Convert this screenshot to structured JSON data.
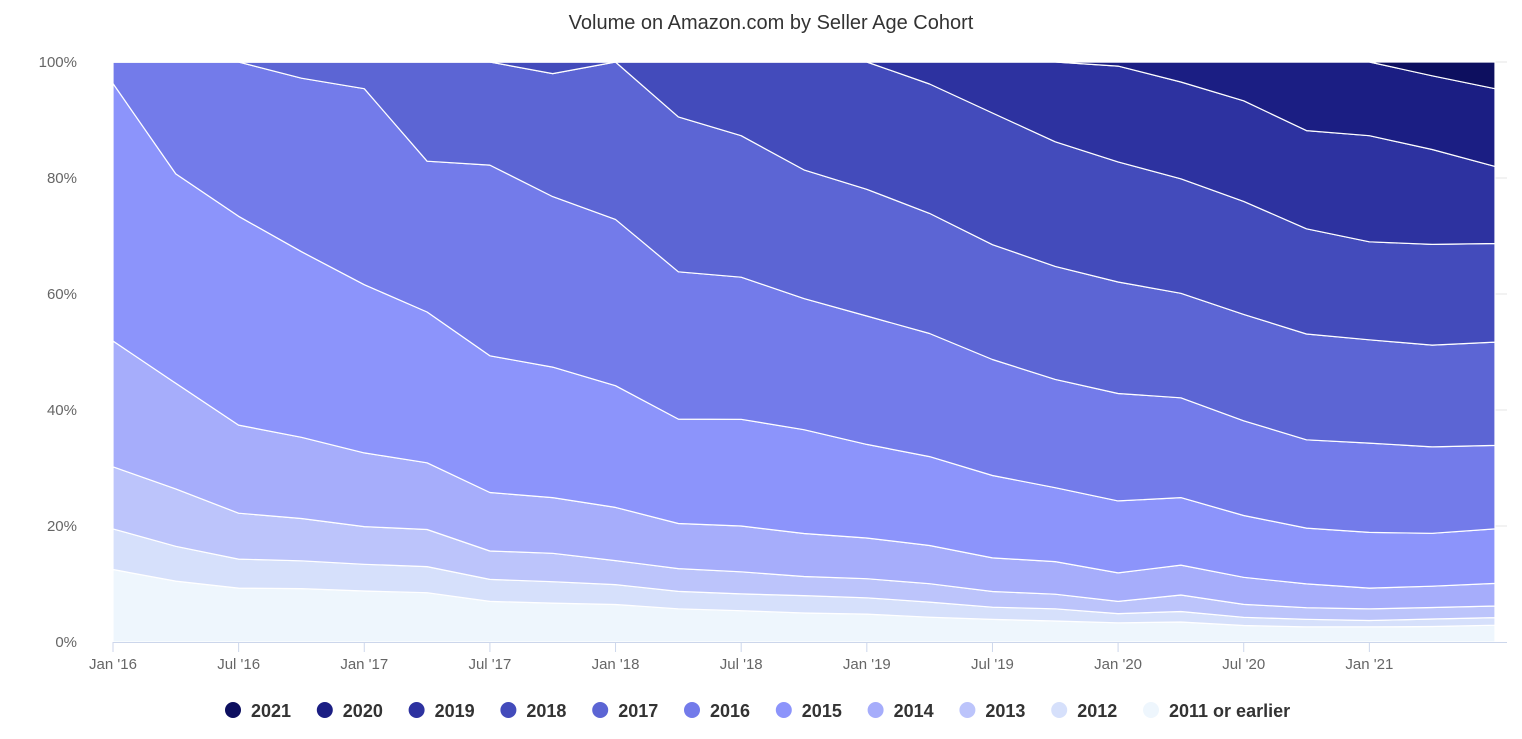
{
  "chart_data": {
    "type": "area",
    "stacking": "percent",
    "title": "Volume on Amazon.com by Seller Age Cohort",
    "xlabel": "",
    "ylabel": "",
    "ylim": [
      0,
      100
    ],
    "y_ticks": [
      "0%",
      "20%",
      "40%",
      "60%",
      "80%",
      "100%"
    ],
    "x_ticks": [
      "Jan '16",
      "Jul '16",
      "Jan '17",
      "Jul '17",
      "Jan '18",
      "Jul '18",
      "Jan '19",
      "Jul '19",
      "Jan '20",
      "Jul '20",
      "Jan '21"
    ],
    "x": [
      "Jan '16",
      "Apr '16",
      "Jul '16",
      "Oct '16",
      "Jan '17",
      "Apr '17",
      "Jul '17",
      "Oct '17",
      "Jan '18",
      "Apr '18",
      "Jul '18",
      "Oct '18",
      "Jan '19",
      "Apr '19",
      "Jul '19",
      "Oct '19",
      "Jan '20",
      "Apr '20",
      "Jul '20",
      "Oct '20",
      "Jan '21",
      "Apr '21",
      "Jun '21"
    ],
    "legend_position": "bottom",
    "grid": true,
    "series": [
      {
        "name": "2011 or earlier",
        "color": "#eef6fd",
        "values": [
          12.5,
          10.5,
          9.3,
          9.2,
          8.8,
          8.5,
          7.0,
          6.7,
          6.4,
          6.1,
          5.4,
          5.0,
          4.8,
          4.3,
          3.9,
          3.6,
          3.3,
          3.4,
          2.8,
          2.6,
          2.6,
          2.7,
          2.9
        ]
      },
      {
        "name": "2012",
        "color": "#d6e0fb",
        "values": [
          7.0,
          6.0,
          5.0,
          4.8,
          4.6,
          4.5,
          3.8,
          3.7,
          3.4,
          3.2,
          2.9,
          3.0,
          2.8,
          2.6,
          2.1,
          2.1,
          1.6,
          1.8,
          1.4,
          1.3,
          1.1,
          1.3,
          1.3
        ]
      },
      {
        "name": "2013",
        "color": "#bcc4fb",
        "values": [
          10.7,
          9.9,
          7.9,
          7.3,
          6.5,
          6.4,
          4.9,
          4.9,
          4.1,
          4.2,
          3.8,
          3.3,
          3.3,
          3.2,
          2.7,
          2.5,
          2.1,
          2.8,
          2.2,
          2.0,
          2.0,
          2.0,
          2.0
        ]
      },
      {
        "name": "2014",
        "color": "#a6adfb",
        "values": [
          21.7,
          18.2,
          15.2,
          14.0,
          12.7,
          11.5,
          10.1,
          9.6,
          9.1,
          8.3,
          7.9,
          7.4,
          7.0,
          6.6,
          5.8,
          5.6,
          4.9,
          5.1,
          4.6,
          4.1,
          3.6,
          3.7,
          3.9
        ]
      },
      {
        "name": "2015",
        "color": "#8c94fb",
        "values": [
          44.4,
          36.1,
          36.0,
          32.0,
          29.0,
          26.0,
          23.6,
          22.5,
          20.8,
          19.2,
          18.4,
          17.9,
          16.1,
          15.4,
          14.2,
          12.7,
          12.4,
          11.5,
          10.5,
          9.6,
          9.6,
          9.2,
          9.4
        ]
      },
      {
        "name": "2016",
        "color": "#737bea",
        "values": [
          3.7,
          19.3,
          26.6,
          29.9,
          33.8,
          26.0,
          32.9,
          29.4,
          28.4,
          27.1,
          24.5,
          22.6,
          22.1,
          21.3,
          20.0,
          18.6,
          18.5,
          17.0,
          16.1,
          15.2,
          15.4,
          15.0,
          14.4
        ]
      },
      {
        "name": "2017",
        "color": "#5c65d4",
        "values": [
          0,
          0,
          0,
          2.8,
          4.6,
          17.1,
          17.8,
          21.2,
          26.9,
          28.5,
          24.4,
          22.2,
          21.8,
          20.8,
          19.8,
          19.4,
          19.2,
          17.8,
          18.1,
          18.2,
          17.8,
          17.7,
          17.8
        ]
      },
      {
        "name": "2018",
        "color": "#434bbb",
        "values": [
          0,
          0,
          0,
          0,
          0,
          0,
          0,
          2.0,
          0,
          10.1,
          12.7,
          18.6,
          21.9,
          22.4,
          22.7,
          21.4,
          20.7,
          19.5,
          19.2,
          18.1,
          16.9,
          17.5,
          17.0
        ]
      },
      {
        "name": "2019",
        "color": "#2d32a0",
        "values": [
          0,
          0,
          0,
          0,
          0,
          0,
          0,
          0,
          0,
          0,
          0,
          0,
          0,
          3.8,
          8.8,
          13.7,
          16.5,
          16.5,
          17.1,
          16.9,
          18.3,
          16.5,
          13.3
        ]
      },
      {
        "name": "2020",
        "color": "#1b1e83",
        "values": [
          0,
          0,
          0,
          0,
          0,
          0,
          0,
          0,
          0,
          0,
          0,
          0,
          0,
          0,
          0,
          0,
          0.7,
          3.4,
          6.6,
          11.8,
          12.7,
          12.8,
          13.4
        ]
      },
      {
        "name": "2021",
        "color": "#0d0f5f",
        "values": [
          0,
          0,
          0,
          0,
          0,
          0,
          0,
          0,
          0,
          0,
          0,
          0,
          0,
          0,
          0,
          0,
          0,
          0,
          0,
          0,
          0,
          2.4,
          4.6
        ]
      }
    ]
  },
  "legend": {
    "items": [
      {
        "label": "2021",
        "color": "#0d0f5f"
      },
      {
        "label": "2020",
        "color": "#1b1e83"
      },
      {
        "label": "2019",
        "color": "#2d32a0"
      },
      {
        "label": "2018",
        "color": "#434bbb"
      },
      {
        "label": "2017",
        "color": "#5c65d4"
      },
      {
        "label": "2016",
        "color": "#737bea"
      },
      {
        "label": "2015",
        "color": "#8c94fb"
      },
      {
        "label": "2014",
        "color": "#a6adfb"
      },
      {
        "label": "2013",
        "color": "#bcc4fb"
      },
      {
        "label": "2012",
        "color": "#d6e0fb"
      },
      {
        "label": "2011 or earlier",
        "color": "#eef6fd"
      }
    ]
  }
}
